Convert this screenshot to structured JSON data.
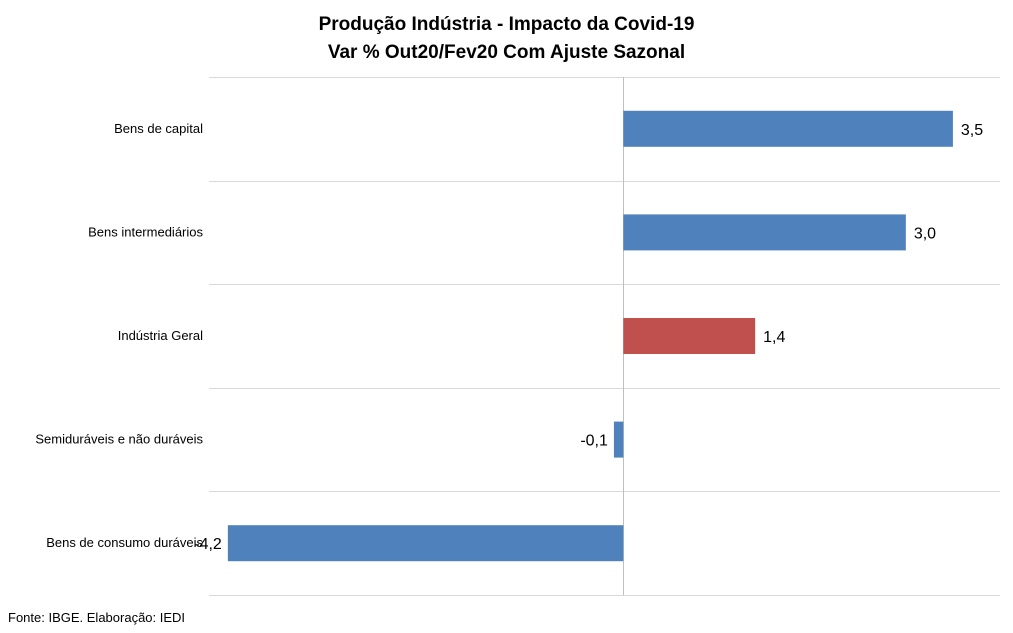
{
  "title": "Produção Indústria - Impacto da Covid-19",
  "subtitle": "Var % Out20/Fev20 Com Ajuste Sazonal",
  "source": "Fonte: IBGE. Elaboração: IEDI",
  "colors": {
    "default_bar": "#4f81bd",
    "highlight_bar": "#c0504d",
    "grid": "#d9d9d9",
    "axis": "#bfbfbf"
  },
  "chart_data": {
    "type": "bar",
    "orientation": "horizontal",
    "title": "Produção Indústria - Impacto da Covid-19",
    "subtitle": "Var % Out20/Fev20 Com Ajuste Sazonal",
    "categories": [
      "Bens de capital",
      "Bens intermediários",
      "Indústria Geral",
      "Semiduráveis e não duráveis",
      "Bens de consumo duráveis"
    ],
    "values": [
      3.5,
      3.0,
      1.4,
      -0.1,
      -4.2
    ],
    "value_labels": [
      "3,5",
      "3,0",
      "1,4",
      "-0,1",
      "-4,2"
    ],
    "highlight": [
      "Indústria Geral"
    ],
    "xlim": [
      -4.4,
      4.0
    ],
    "grid": true,
    "legend": "none"
  }
}
